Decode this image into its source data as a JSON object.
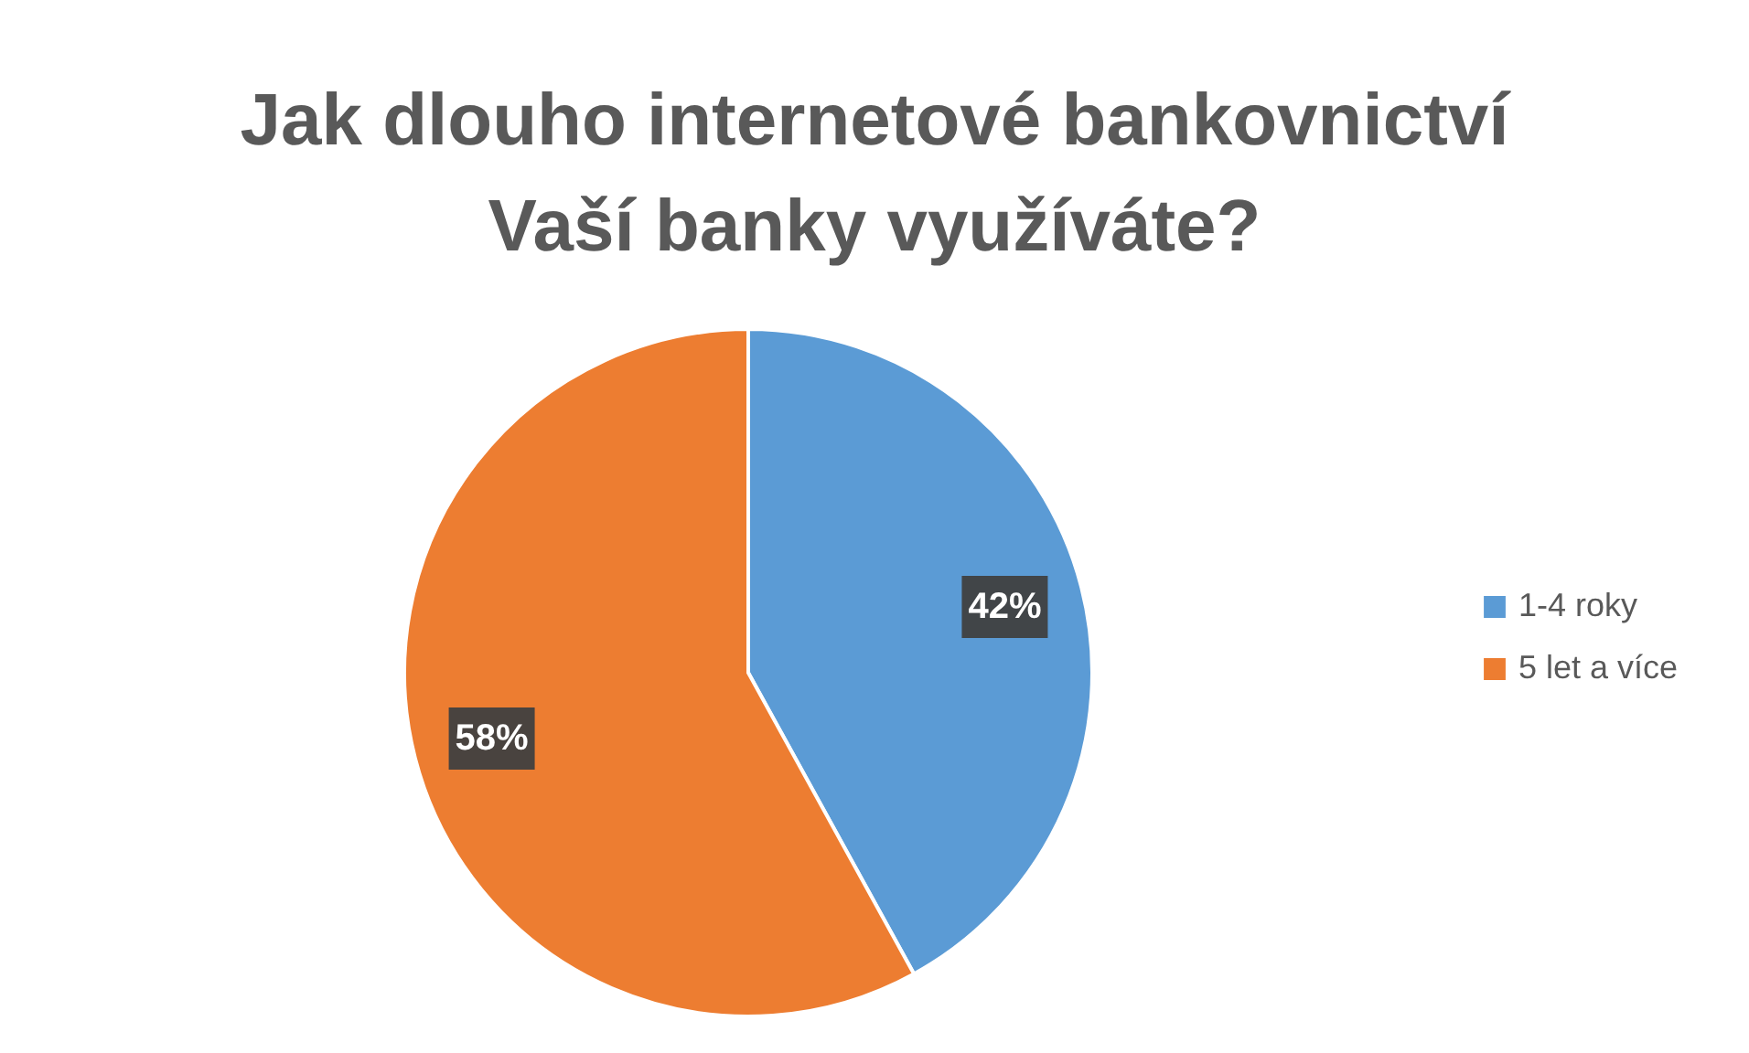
{
  "chart_data": {
    "type": "pie",
    "title": "Jak dlouho internetové bankovnictví Vaší banky využíváte?",
    "categories": [
      "1-4 roky",
      "5 let a více"
    ],
    "values": [
      42,
      58
    ],
    "colors": [
      "#5b9bd5",
      "#ed7d31"
    ],
    "value_labels": [
      "42%",
      "58%"
    ],
    "legend": "right"
  }
}
